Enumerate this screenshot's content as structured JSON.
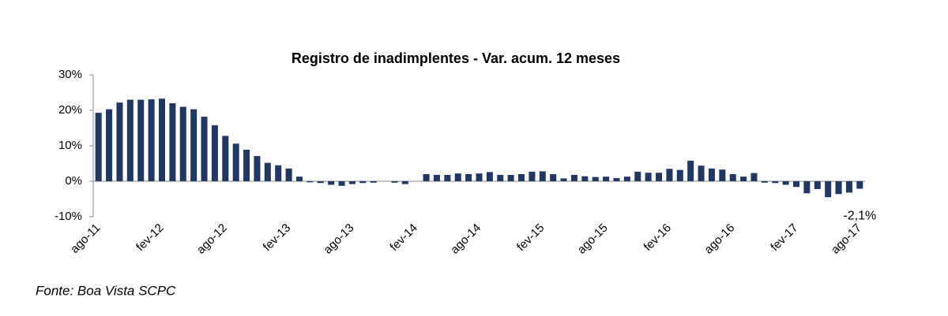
{
  "chart_data": {
    "type": "bar",
    "title": "Registro de inadimplentes - Var. acum. 12 meses",
    "source": "Fonte: Boa Vista SCPC",
    "categories": [
      "ago-11",
      null,
      null,
      null,
      null,
      null,
      "fev-12",
      null,
      null,
      null,
      null,
      null,
      "ago-12",
      null,
      null,
      null,
      null,
      null,
      "fev-13",
      null,
      null,
      null,
      null,
      null,
      "ago-13",
      null,
      null,
      null,
      null,
      null,
      "fev-14",
      null,
      null,
      null,
      null,
      null,
      "ago-14",
      null,
      null,
      null,
      null,
      null,
      "fev-15",
      null,
      null,
      null,
      null,
      null,
      "ago-15",
      null,
      null,
      null,
      null,
      null,
      "fev-16",
      null,
      null,
      null,
      null,
      null,
      "ago-16",
      null,
      null,
      null,
      null,
      null,
      "fev-17",
      null,
      null,
      null,
      null,
      null,
      "ago-17"
    ],
    "values": [
      19.3,
      20.3,
      22.2,
      23,
      23,
      23.1,
      23.3,
      22,
      21,
      20.3,
      18.2,
      15.8,
      12.8,
      10.6,
      8.9,
      7.1,
      5.2,
      4.5,
      3.6,
      1.3,
      -0.3,
      -0.5,
      -1,
      -1.3,
      -0.8,
      -0.5,
      -0.4,
      0,
      -0.4,
      -0.8,
      0,
      2,
      1.8,
      1.8,
      2.2,
      2,
      2.2,
      2.6,
      1.8,
      1.8,
      2,
      2.7,
      2.8,
      2,
      0.8,
      1.8,
      1.4,
      1.2,
      1.3,
      0.9,
      1.3,
      2.7,
      2.4,
      2.4,
      3.5,
      3.2,
      5.8,
      4.4,
      3.6,
      3.3,
      2,
      1.3,
      2.3,
      -0.4,
      -0.5,
      -1,
      -1.6,
      -3.4,
      -2.2,
      -4.5,
      -3.6,
      -3.2,
      -2.1
    ],
    "value_labels": [
      null,
      null,
      null,
      null,
      null,
      null,
      null,
      null,
      null,
      null,
      null,
      null,
      null,
      null,
      null,
      null,
      null,
      null,
      null,
      null,
      null,
      null,
      null,
      null,
      null,
      null,
      null,
      null,
      null,
      null,
      null,
      null,
      null,
      null,
      null,
      null,
      null,
      null,
      null,
      null,
      null,
      null,
      null,
      null,
      null,
      null,
      null,
      null,
      null,
      null,
      null,
      null,
      null,
      null,
      null,
      null,
      null,
      null,
      null,
      null,
      null,
      null,
      null,
      null,
      null,
      null,
      null,
      null,
      null,
      null,
      null,
      null,
      "-2,1%"
    ],
    "color": "#1f3864",
    "ylim": [
      -10,
      30
    ],
    "yticks": [
      {
        "value": -10,
        "label": "-10%"
      },
      {
        "value": 0,
        "label": "0%"
      },
      {
        "value": 10,
        "label": "10%"
      },
      {
        "value": 20,
        "label": "20%"
      },
      {
        "value": 30,
        "label": "30%"
      }
    ],
    "grid": false
  }
}
